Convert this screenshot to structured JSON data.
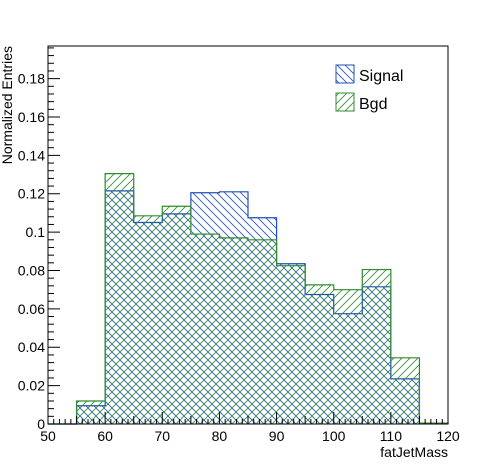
{
  "chart_data": {
    "type": "bar",
    "xlabel": "fatJetMass",
    "ylabel": "Normalized Entries",
    "xlim": [
      50,
      120
    ],
    "ylim": [
      0,
      0.197
    ],
    "xticks": [
      50,
      60,
      70,
      80,
      90,
      100,
      110,
      120
    ],
    "yticks": [
      0,
      0.02,
      0.04,
      0.06,
      0.08,
      0.1,
      0.12,
      0.14,
      0.16,
      0.18
    ],
    "bin_edges": [
      50,
      55,
      60,
      65,
      70,
      75,
      80,
      85,
      90,
      95,
      100,
      105,
      110,
      115,
      120
    ],
    "series": [
      {
        "name": "Signal",
        "color": "#1f4fbf",
        "values": [
          0,
          0.0095,
          0.1215,
          0.105,
          0.1095,
          0.1205,
          0.121,
          0.1075,
          0.0835,
          0.0675,
          0.0575,
          0.0715,
          0.0235,
          0.0005
        ]
      },
      {
        "name": "Bgd",
        "color": "#2e8b2e",
        "values": [
          0,
          0.012,
          0.1305,
          0.1085,
          0.1135,
          0.099,
          0.097,
          0.096,
          0.0825,
          0.0725,
          0.07,
          0.0805,
          0.0345,
          0.0005
        ]
      }
    ],
    "legend_position": "top-right"
  }
}
